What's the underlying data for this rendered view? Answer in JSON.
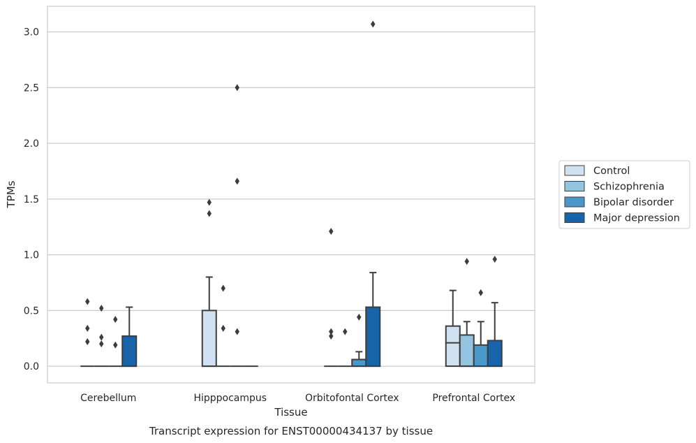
{
  "chart_data": {
    "type": "box",
    "caption": "Transcript expression for ENST00000434137 by tissue",
    "xlabel": "Tissue",
    "ylabel": "TPMs",
    "ylim": [
      -0.15,
      3.23
    ],
    "yticks": [
      0.0,
      0.5,
      1.0,
      1.5,
      2.0,
      2.5,
      3.0
    ],
    "ytick_labels": [
      "0.0",
      "0.5",
      "1.0",
      "1.5",
      "2.0",
      "2.5",
      "3.0"
    ],
    "grid": "horizontal",
    "legend_position": "center-right, outside plot",
    "categories": [
      "Cerebellum",
      "Hipppocampus",
      "Orbitofontal Cortex",
      "Prefrontal Cortex"
    ],
    "series": [
      {
        "name": "Control",
        "color": "#d0e1f2",
        "boxes": [
          {
            "min": 0,
            "q1": 0,
            "median": 0,
            "q3": 0,
            "max": 0,
            "outliers": [
              0.58,
              0.34,
              0.22
            ]
          },
          {
            "min": 0,
            "q1": 0,
            "median": 0,
            "q3": 0.5,
            "max": 0.8,
            "outliers": [
              1.47,
              1.37
            ]
          },
          {
            "min": 0,
            "q1": 0,
            "median": 0,
            "q3": 0,
            "max": 0,
            "outliers": [
              1.21,
              0.31,
              0.27
            ]
          },
          {
            "min": 0,
            "q1": 0,
            "median": 0.21,
            "q3": 0.36,
            "max": 0.68,
            "outliers": []
          }
        ]
      },
      {
        "name": "Schizophrenia",
        "color": "#94c4df",
        "boxes": [
          {
            "min": 0,
            "q1": 0,
            "median": 0,
            "q3": 0,
            "max": 0,
            "outliers": [
              0.52,
              0.26,
              0.2
            ]
          },
          {
            "min": 0,
            "q1": 0,
            "median": 0,
            "q3": 0,
            "max": 0,
            "outliers": [
              0.7,
              0.34
            ]
          },
          {
            "min": 0,
            "q1": 0,
            "median": 0,
            "q3": 0,
            "max": 0,
            "outliers": [
              0.31
            ]
          },
          {
            "min": 0,
            "q1": 0,
            "median": 0,
            "q3": 0.28,
            "max": 0.4,
            "outliers": [
              0.94
            ]
          }
        ]
      },
      {
        "name": "Bipolar disorder",
        "color": "#4a98c9",
        "boxes": [
          {
            "min": 0,
            "q1": 0,
            "median": 0,
            "q3": 0,
            "max": 0,
            "outliers": [
              0.42,
              0.19
            ]
          },
          {
            "min": 0,
            "q1": 0,
            "median": 0,
            "q3": 0,
            "max": 0,
            "outliers": [
              2.5,
              1.66,
              0.31
            ]
          },
          {
            "min": 0,
            "q1": 0,
            "median": 0,
            "q3": 0.06,
            "max": 0.13,
            "outliers": [
              0.44
            ]
          },
          {
            "min": 0,
            "q1": 0,
            "median": 0,
            "q3": 0.19,
            "max": 0.4,
            "outliers": [
              0.66
            ]
          }
        ]
      },
      {
        "name": "Major depression",
        "color": "#1764ab",
        "boxes": [
          {
            "min": 0,
            "q1": 0,
            "median": 0,
            "q3": 0.27,
            "max": 0.53,
            "outliers": []
          },
          {
            "min": 0,
            "q1": 0,
            "median": 0,
            "q3": 0,
            "max": 0,
            "outliers": []
          },
          {
            "min": 0,
            "q1": 0,
            "median": 0,
            "q3": 0.53,
            "max": 0.84,
            "outliers": [
              3.07
            ]
          },
          {
            "min": 0,
            "q1": 0,
            "median": 0,
            "q3": 0.23,
            "max": 0.57,
            "outliers": [
              0.96
            ]
          }
        ]
      }
    ]
  }
}
